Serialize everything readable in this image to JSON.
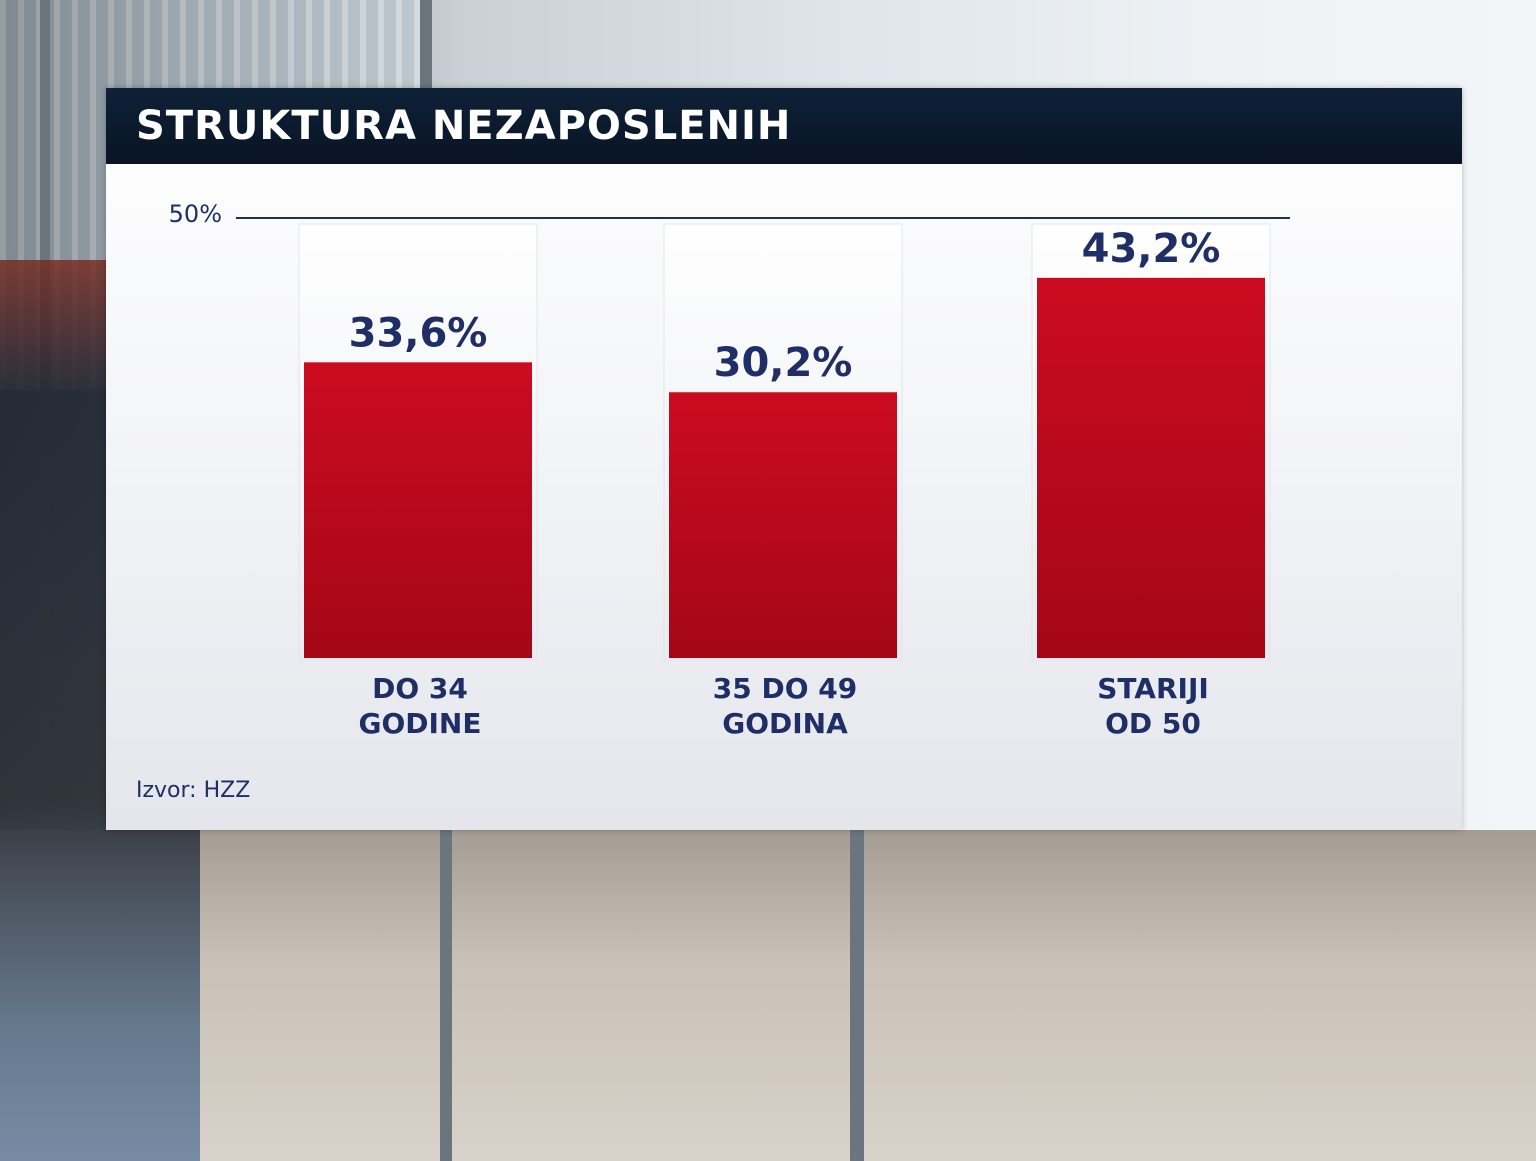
{
  "title": "STRUKTURA NEZAPOSLENIH",
  "source": "Izvor: HZZ",
  "chart_data": {
    "type": "bar",
    "title": "STRUKTURA NEZAPOSLENIH",
    "categories": [
      [
        "DO 34",
        "GODINE"
      ],
      [
        "35 DO 49",
        "GODINA"
      ],
      [
        "STARIJI",
        "OD 50"
      ]
    ],
    "values": [
      33.6,
      30.2,
      43.2
    ],
    "value_labels": [
      "33,6%",
      "30,2%",
      "43,2%"
    ],
    "ylim": [
      0,
      50
    ],
    "reference_line": {
      "value": 50,
      "label": "50%"
    },
    "xlabel": "",
    "ylabel": "",
    "grid": false,
    "bar_color": "#c20a1e",
    "text_color": "#1f2f66"
  }
}
